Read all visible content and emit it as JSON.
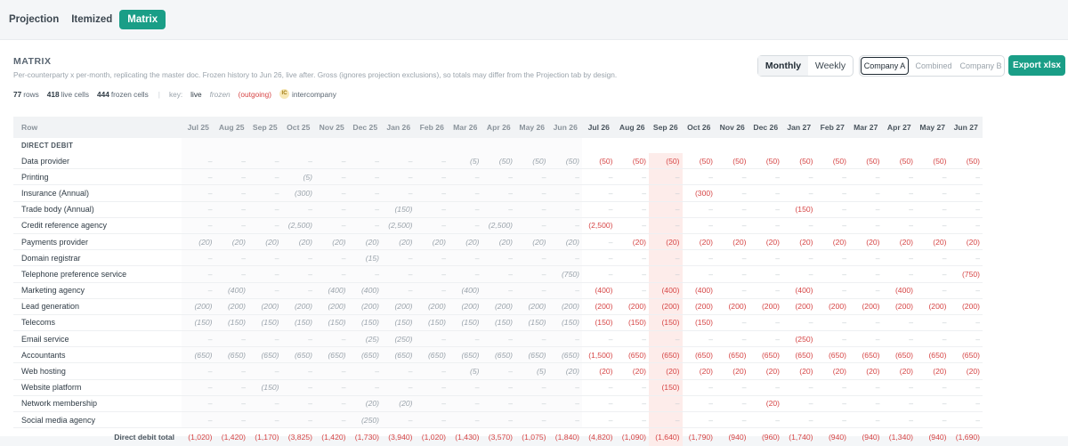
{
  "tabs": [
    {
      "label": "Projection",
      "active": false
    },
    {
      "label": "Itemized",
      "active": false
    },
    {
      "label": "Matrix",
      "active": true
    }
  ],
  "header": {
    "title": "MATRIX",
    "description": "Per-counterparty x per-month, replicating the master doc. Frozen history to Jun 26, live after. Gross (ignores projection exclusions), so totals may differ from the Projection tab by design."
  },
  "stats": {
    "rows_count": "77",
    "rows_label": "rows",
    "live_count": "418",
    "live_label": "live cells",
    "frozen_count": "444",
    "frozen_label": "frozen cells",
    "separator": "|",
    "key_label": "key:",
    "key_live": "live",
    "key_frozen": "frozen",
    "key_outgoing": "(outgoing)",
    "key_ic_badge": "IC",
    "key_intercompany": "intercompany"
  },
  "view_toggle": {
    "monthly": "Monthly",
    "weekly": "Weekly",
    "selected": "Monthly"
  },
  "company_toggle": {
    "a": "Company A",
    "combined": "Combined",
    "b": "Company B",
    "selected": "Company A"
  },
  "export_label": "Export xlsx",
  "colors": {
    "accent": "#1a9e87",
    "outgoing": "#d64545",
    "frozen": "#9aa3ab"
  },
  "table": {
    "row_header": "Row",
    "frozen_count": 12,
    "months": [
      "Jul 25",
      "Aug 25",
      "Sep 25",
      "Oct 25",
      "Nov 25",
      "Dec 25",
      "Jan 26",
      "Feb 26",
      "Mar 26",
      "Apr 26",
      "May 26",
      "Jun 26",
      "Jul 26",
      "Aug 26",
      "Sep 26",
      "Oct 26",
      "Nov 26",
      "Dec 26",
      "Jan 27",
      "Feb 27",
      "Mar 27",
      "Apr 27",
      "May 27",
      "Jun 27"
    ],
    "section": "DIRECT DEBIT",
    "highlight_col": 14,
    "rows": [
      {
        "label": "Data provider",
        "cells": [
          "–",
          "–",
          "–",
          "–",
          "–",
          "–",
          "–",
          "–",
          "(5)",
          "(50)",
          "(50)",
          "(50)",
          "(50)",
          "(50)",
          "(50)",
          "(50)",
          "(50)",
          "(50)",
          "(50)",
          "(50)",
          "(50)",
          "(50)",
          "(50)",
          "(50)"
        ]
      },
      {
        "label": "Printing",
        "cells": [
          "–",
          "–",
          "–",
          "(5)",
          "–",
          "–",
          "–",
          "–",
          "–",
          "–",
          "–",
          "–",
          "–",
          "–",
          "–",
          "–",
          "–",
          "–",
          "–",
          "–",
          "–",
          "–",
          "–",
          "–"
        ]
      },
      {
        "label": "Insurance (Annual)",
        "cells": [
          "–",
          "–",
          "–",
          "(300)",
          "–",
          "–",
          "–",
          "–",
          "–",
          "–",
          "–",
          "–",
          "–",
          "–",
          "–",
          "(300)",
          "–",
          "–",
          "–",
          "–",
          "–",
          "–",
          "–",
          "–"
        ]
      },
      {
        "label": "Trade body (Annual)",
        "cells": [
          "–",
          "–",
          "–",
          "–",
          "–",
          "–",
          "(150)",
          "–",
          "–",
          "–",
          "–",
          "–",
          "–",
          "–",
          "–",
          "–",
          "–",
          "–",
          "(150)",
          "–",
          "–",
          "–",
          "–",
          "–"
        ]
      },
      {
        "label": "Credit reference agency",
        "cells": [
          "–",
          "–",
          "–",
          "(2,500)",
          "–",
          "–",
          "(2,500)",
          "–",
          "–",
          "(2,500)",
          "–",
          "–",
          "(2,500)",
          "–",
          "–",
          "–",
          "–",
          "–",
          "–",
          "–",
          "–",
          "–",
          "–",
          "–"
        ]
      },
      {
        "label": "Payments provider",
        "cells": [
          "(20)",
          "(20)",
          "(20)",
          "(20)",
          "(20)",
          "(20)",
          "(20)",
          "(20)",
          "(20)",
          "(20)",
          "(20)",
          "(20)",
          "–",
          "(20)",
          "(20)",
          "(20)",
          "(20)",
          "(20)",
          "(20)",
          "(20)",
          "(20)",
          "(20)",
          "(20)",
          "(20)"
        ]
      },
      {
        "label": "Domain registrar",
        "cells": [
          "–",
          "–",
          "–",
          "–",
          "–",
          "(15)",
          "–",
          "–",
          "–",
          "–",
          "–",
          "–",
          "–",
          "–",
          "–",
          "–",
          "–",
          "–",
          "–",
          "–",
          "–",
          "–",
          "–",
          "–"
        ]
      },
      {
        "label": "Telephone preference service",
        "cells": [
          "–",
          "–",
          "–",
          "–",
          "–",
          "–",
          "–",
          "–",
          "–",
          "–",
          "–",
          "(750)",
          "–",
          "–",
          "–",
          "–",
          "–",
          "–",
          "–",
          "–",
          "–",
          "–",
          "–",
          "(750)"
        ]
      },
      {
        "label": "Marketing agency",
        "cells": [
          "–",
          "(400)",
          "–",
          "–",
          "(400)",
          "(400)",
          "–",
          "–",
          "(400)",
          "–",
          "–",
          "–",
          "(400)",
          "–",
          "(400)",
          "(400)",
          "–",
          "–",
          "(400)",
          "–",
          "–",
          "(400)",
          "–",
          "–"
        ]
      },
      {
        "label": "Lead generation",
        "cells": [
          "(200)",
          "(200)",
          "(200)",
          "(200)",
          "(200)",
          "(200)",
          "(200)",
          "(200)",
          "(200)",
          "(200)",
          "(200)",
          "(200)",
          "(200)",
          "(200)",
          "(200)",
          "(200)",
          "(200)",
          "(200)",
          "(200)",
          "(200)",
          "(200)",
          "(200)",
          "(200)",
          "(200)"
        ]
      },
      {
        "label": "Telecoms",
        "cells": [
          "(150)",
          "(150)",
          "(150)",
          "(150)",
          "(150)",
          "(150)",
          "(150)",
          "(150)",
          "(150)",
          "(150)",
          "(150)",
          "(150)",
          "(150)",
          "(150)",
          "(150)",
          "(150)",
          "–",
          "–",
          "–",
          "–",
          "–",
          "–",
          "–",
          "–"
        ]
      },
      {
        "label": "Email service",
        "cells": [
          "–",
          "–",
          "–",
          "–",
          "–",
          "(25)",
          "(250)",
          "–",
          "–",
          "–",
          "–",
          "–",
          "–",
          "–",
          "–",
          "–",
          "–",
          "–",
          "(250)",
          "–",
          "–",
          "–",
          "–",
          "–"
        ]
      },
      {
        "label": "Accountants",
        "cells": [
          "(650)",
          "(650)",
          "(650)",
          "(650)",
          "(650)",
          "(650)",
          "(650)",
          "(650)",
          "(650)",
          "(650)",
          "(650)",
          "(650)",
          "(1,500)",
          "(650)",
          "(650)",
          "(650)",
          "(650)",
          "(650)",
          "(650)",
          "(650)",
          "(650)",
          "(650)",
          "(650)",
          "(650)"
        ]
      },
      {
        "label": "Web hosting",
        "cells": [
          "–",
          "–",
          "–",
          "–",
          "–",
          "–",
          "–",
          "–",
          "(5)",
          "–",
          "(5)",
          "(20)",
          "(20)",
          "(20)",
          "(20)",
          "(20)",
          "(20)",
          "(20)",
          "(20)",
          "(20)",
          "(20)",
          "(20)",
          "(20)",
          "(20)"
        ]
      },
      {
        "label": "Website platform",
        "cells": [
          "–",
          "–",
          "(150)",
          "–",
          "–",
          "–",
          "–",
          "–",
          "–",
          "–",
          "–",
          "–",
          "–",
          "–",
          "(150)",
          "–",
          "–",
          "–",
          "–",
          "–",
          "–",
          "–",
          "–",
          "–"
        ]
      },
      {
        "label": "Network membership",
        "cells": [
          "–",
          "–",
          "–",
          "–",
          "–",
          "(20)",
          "(20)",
          "–",
          "–",
          "–",
          "–",
          "–",
          "–",
          "–",
          "–",
          "–",
          "–",
          "(20)",
          "–",
          "–",
          "–",
          "–",
          "–",
          "–"
        ]
      },
      {
        "label": "Social media agency",
        "cells": [
          "–",
          "–",
          "–",
          "–",
          "–",
          "(250)",
          "–",
          "–",
          "–",
          "–",
          "–",
          "–",
          "–",
          "–",
          "–",
          "–",
          "–",
          "–",
          "–",
          "–",
          "–",
          "–",
          "–",
          "–"
        ]
      }
    ],
    "total": {
      "label": "Direct debit total",
      "cells": [
        "(1,020)",
        "(1,420)",
        "(1,170)",
        "(3,825)",
        "(1,420)",
        "(1,730)",
        "(3,940)",
        "(1,020)",
        "(1,430)",
        "(3,570)",
        "(1,075)",
        "(1,840)",
        "(4,820)",
        "(1,090)",
        "(1,640)",
        "(1,790)",
        "(940)",
        "(960)",
        "(1,740)",
        "(940)",
        "(940)",
        "(1,340)",
        "(940)",
        "(1,690)"
      ]
    }
  }
}
